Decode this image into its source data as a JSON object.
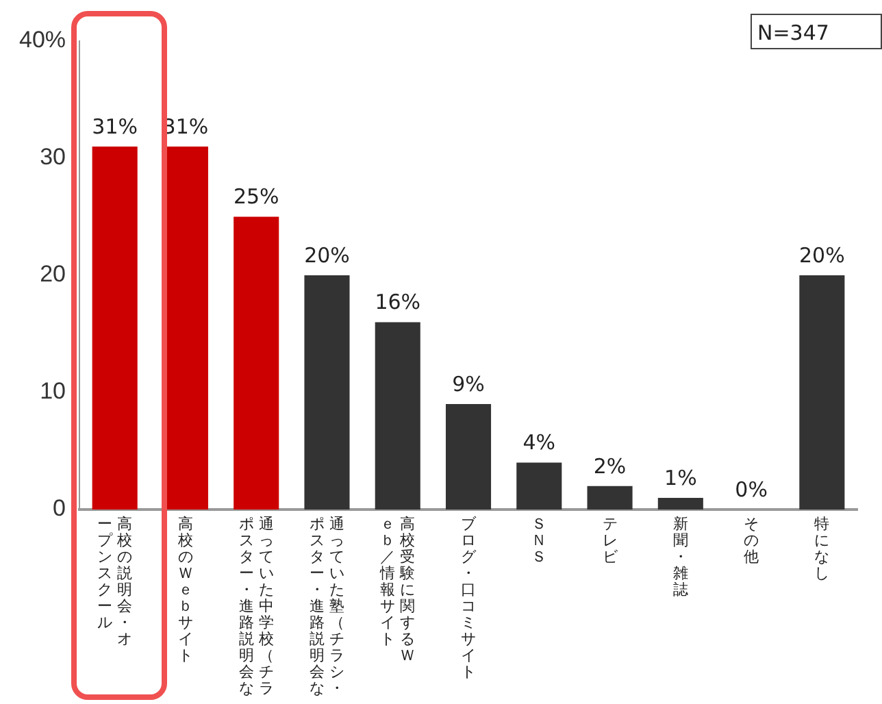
{
  "chart_data": {
    "type": "bar",
    "categories": [
      "高校の説明会・オープンスクール",
      "高校のＷｅｂサイト",
      "通っていた中学校（チラポスター・進路説明会な",
      "通っていた塾（チラシ・ポスター・進路説明会な",
      "高校受験に関するＷｅｂ／情報サイト",
      "ブログ・口コミサイト",
      "ＳＮＳ",
      "テレビ",
      "新聞・雑誌",
      "その他",
      "特になし"
    ],
    "values": [
      31,
      31,
      25,
      20,
      16,
      9,
      4,
      2,
      1,
      0,
      20
    ],
    "colors": [
      "#cc0000",
      "#cc0000",
      "#cc0000",
      "#333333",
      "#333333",
      "#333333",
      "#333333",
      "#333333",
      "#333333",
      "#333333",
      "#333333"
    ],
    "value_labels": [
      "31%",
      "31%",
      "25%",
      "20%",
      "16%",
      "9%",
      "4%",
      "2%",
      "1%",
      "0%",
      "20%"
    ],
    "ylim": [
      0,
      40
    ],
    "yticks": [
      0,
      10,
      20,
      30,
      {
        "value": 40,
        "label": "40%"
      }
    ],
    "grid": false,
    "legend": false,
    "annotations": [
      "N=347"
    ]
  }
}
